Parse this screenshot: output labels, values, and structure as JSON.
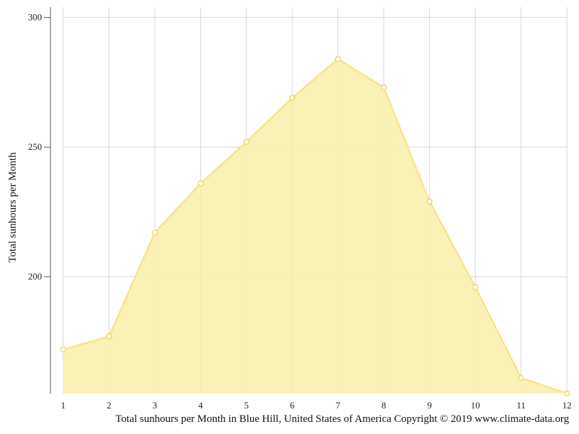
{
  "chart_data": {
    "type": "area",
    "x": [
      1,
      2,
      3,
      4,
      5,
      6,
      7,
      8,
      9,
      10,
      11,
      12
    ],
    "x_tick_labels": [
      "1",
      "2",
      "3",
      "4",
      "5",
      "6",
      "7",
      "8",
      "9",
      "10",
      "11",
      "12"
    ],
    "values": [
      172,
      177,
      217,
      236,
      252,
      269,
      284,
      273,
      229,
      196,
      161,
      155
    ],
    "ylabel": "Total sunhours per Month",
    "y_ticks": [
      200,
      250,
      300
    ],
    "y_tick_labels": [
      "200",
      "250",
      "300"
    ],
    "ylim": [
      155,
      304
    ],
    "grid": true,
    "fill_color": "#f9eeaa",
    "line_color": "#f7e48a",
    "marker_stroke": "#f2d660"
  },
  "caption": "Total sunhours per Month in Blue Hill, United States of America Copyright © 2019 www.climate-data.org"
}
